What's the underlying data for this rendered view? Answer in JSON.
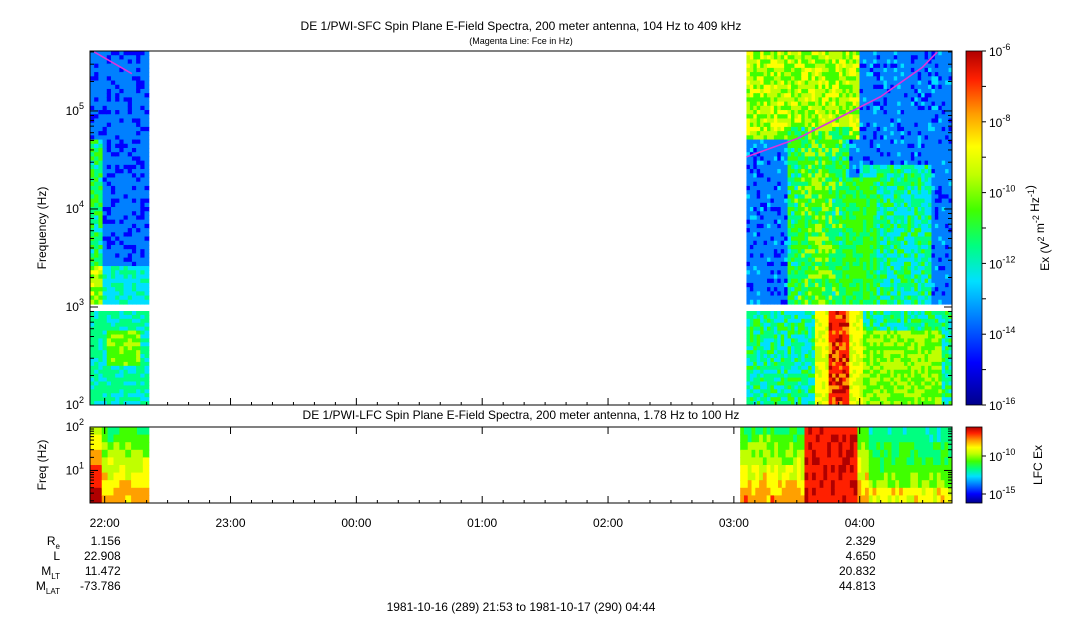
{
  "chart_data": [
    {
      "type": "heatmap",
      "title": "DE 1/PWI-SFC  Spin Plane E-Field Spectra, 200 meter antenna, 104 Hz to 409 kHz",
      "subtitle": "(Magenta Line: Fce in Hz)",
      "ylabel": "Frequency (Hz)",
      "y_scale": "log",
      "ylim": [
        100,
        409000
      ],
      "y_ticks": [
        {
          "value": 100,
          "label": "10",
          "exp": "2"
        },
        {
          "value": 1000,
          "label": "10",
          "exp": "3"
        },
        {
          "value": 10000,
          "label": "10",
          "exp": "4"
        },
        {
          "value": 100000,
          "label": "10",
          "exp": "5"
        }
      ],
      "colorbar": {
        "label_parts": [
          "Ex (V",
          "2",
          " m",
          "-2",
          " Hz",
          "-1",
          ")"
        ],
        "scale": "log",
        "range": [
          1e-16,
          1e-06
        ],
        "ticks": [
          {
            "value": 1e-06,
            "label": "10",
            "exp": "-6"
          },
          {
            "value": 1e-08,
            "label": "10",
            "exp": "-8"
          },
          {
            "value": 1e-10,
            "label": "10",
            "exp": "-10"
          },
          {
            "value": 1e-12,
            "label": "10",
            "exp": "-12"
          },
          {
            "value": 1e-14,
            "label": "10",
            "exp": "-14"
          },
          {
            "value": 1e-16,
            "label": "10",
            "exp": "-16"
          }
        ]
      },
      "fce_line": {
        "segments": [
          {
            "t": [
              "21:55",
              "22:13"
            ],
            "freq": [
              400000,
              240000
            ]
          },
          {
            "t": [
              "03:06",
              "03:30",
              "03:50",
              "04:10",
              "04:30",
              "04:37"
            ],
            "freq": [
              34000,
              52000,
              85000,
              140000,
              280000,
              400000
            ]
          }
        ]
      },
      "data_intervals": [
        [
          "21:53",
          "22:21"
        ],
        [
          "03:06",
          "04:44"
        ]
      ]
    },
    {
      "type": "heatmap",
      "title": "DE 1/PWI-LFC  Spin Plane E-Field Spectra, 200 meter antenna, 1.78 Hz to 100 Hz",
      "ylabel": "Freq (Hz)",
      "y_scale": "log",
      "ylim": [
        1.78,
        100
      ],
      "y_ticks": [
        {
          "value": 100,
          "label": "10",
          "exp": "2"
        },
        {
          "value": 10,
          "label": "10",
          "exp": "1"
        }
      ],
      "colorbar": {
        "label": "LFC Ex",
        "scale": "log",
        "ticks": [
          {
            "value": 1e-10,
            "label": "10",
            "exp": "-10"
          },
          {
            "value": 1e-15,
            "label": "10",
            "exp": "-15"
          }
        ]
      },
      "data_intervals": [
        [
          "21:53",
          "22:21"
        ],
        [
          "03:03",
          "04:44"
        ]
      ]
    }
  ],
  "time_axis": {
    "ticks": [
      "22:00",
      "23:00",
      "00:00",
      "01:00",
      "02:00",
      "03:00",
      "04:00"
    ],
    "range_label": "1981-10-16 (289) 21:53 to 1981-10-17 (290) 04:44"
  },
  "ephemeris": {
    "rows": [
      {
        "label": "R",
        "sub": "e",
        "values": [
          "1.156",
          "2.329"
        ]
      },
      {
        "label": "L",
        "sub": "",
        "values": [
          "22.908",
          "4.650"
        ]
      },
      {
        "label": "M",
        "sub": "LT",
        "values": [
          "11.472",
          "20.832"
        ]
      },
      {
        "label": "M",
        "sub": "LAT",
        "values": [
          "-73.786",
          "44.813"
        ]
      }
    ],
    "value_times": [
      "22:00",
      "04:00"
    ]
  },
  "colors": {
    "fce_line": "#dd33dd",
    "spectrogram_scale": [
      "#00008b",
      "#0000ff",
      "#0080ff",
      "#00e0ff",
      "#00ff80",
      "#40ff00",
      "#c0ff00",
      "#ffff00",
      "#ffa000",
      "#ff2000",
      "#b00000"
    ]
  }
}
